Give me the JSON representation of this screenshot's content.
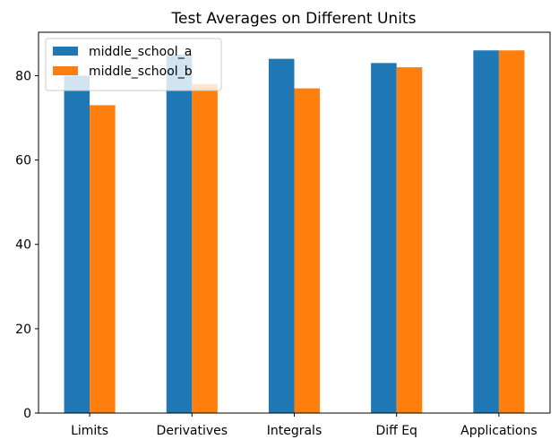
{
  "chart_data": {
    "type": "bar",
    "title": "Test Averages on Different Units",
    "xlabel": "",
    "ylabel": "",
    "categories": [
      "Limits",
      "Derivatives",
      "Integrals",
      "Diff Eq",
      "Applications"
    ],
    "series": [
      {
        "name": "middle_school_a",
        "color": "#1f77b4",
        "values": [
          80,
          85,
          84,
          83,
          86
        ]
      },
      {
        "name": "middle_school_b",
        "color": "#ff7f0e",
        "values": [
          73,
          78,
          77,
          82,
          86
        ]
      }
    ],
    "ylim": [
      0,
      90.3
    ],
    "yticks": [
      0,
      20,
      40,
      60,
      80
    ],
    "grid": false,
    "legend_position": "top-left"
  }
}
